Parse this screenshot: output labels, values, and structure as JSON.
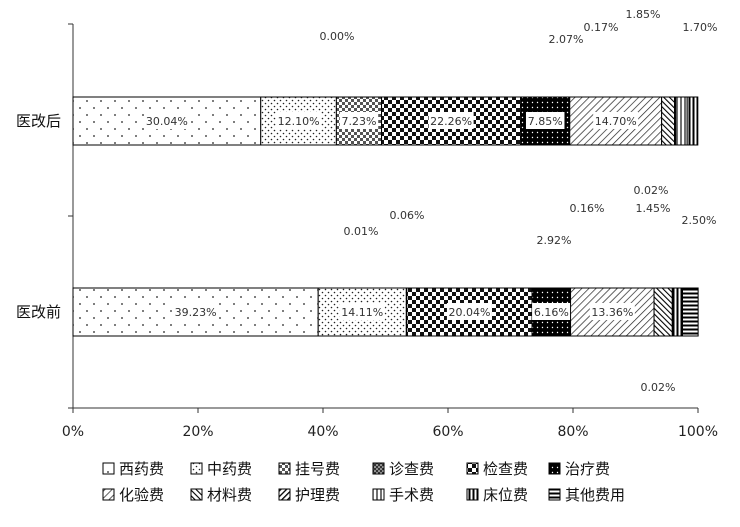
{
  "chart_data": {
    "type": "bar",
    "orientation": "horizontal",
    "stacked": true,
    "normalized": true,
    "categories": [
      "医改后",
      "医改前"
    ],
    "xlim": [
      0,
      100
    ],
    "xticks": [
      "0%",
      "20%",
      "40%",
      "60%",
      "80%",
      "100%"
    ],
    "series": [
      {
        "name": "西药费",
        "values": [
          30.04,
          39.23
        ],
        "labels": [
          "30.04%",
          "39.23%"
        ]
      },
      {
        "name": "中药费",
        "values": [
          12.1,
          14.11
        ],
        "labels": [
          "12.10%",
          "14.11%"
        ]
      },
      {
        "name": "挂号费",
        "values": [
          7.23,
          0.01
        ],
        "labels": [
          "7.23%",
          "0.01%"
        ]
      },
      {
        "name": "诊查费",
        "values": [
          0.0,
          0.06
        ],
        "labels": [
          "0.00%",
          "0.06%"
        ]
      },
      {
        "name": "检查费",
        "values": [
          22.26,
          20.04
        ],
        "labels": [
          "22.26%",
          "20.04%"
        ]
      },
      {
        "name": "治疗费",
        "values": [
          7.85,
          6.16
        ],
        "labels": [
          "7.85%",
          "6.16%"
        ]
      },
      {
        "name": "化验费",
        "values": [
          14.7,
          13.36
        ],
        "labels": [
          "14.70%",
          "13.36%"
        ]
      },
      {
        "name": "材料费",
        "values": [
          2.07,
          2.92
        ],
        "labels": [
          "2.07%",
          "2.92%"
        ]
      },
      {
        "name": "护理费",
        "values": [
          0.17,
          0.16
        ],
        "labels": [
          "0.17%",
          "0.16%"
        ]
      },
      {
        "name": "手术费",
        "values": [
          1.85,
          0.02
        ],
        "labels": [
          "1.85%",
          "0.02%"
        ]
      },
      {
        "name": "床位费",
        "values": [
          1.7,
          1.45
        ],
        "labels": [
          "1.70%",
          "1.45%"
        ]
      },
      {
        "name": "其他费用",
        "values": [
          0.0,
          2.5
        ],
        "labels": [
          "",
          "2.50%"
        ]
      }
    ],
    "extra_labels": [
      "0.02%"
    ],
    "legend_position": "bottom",
    "grid": false
  }
}
